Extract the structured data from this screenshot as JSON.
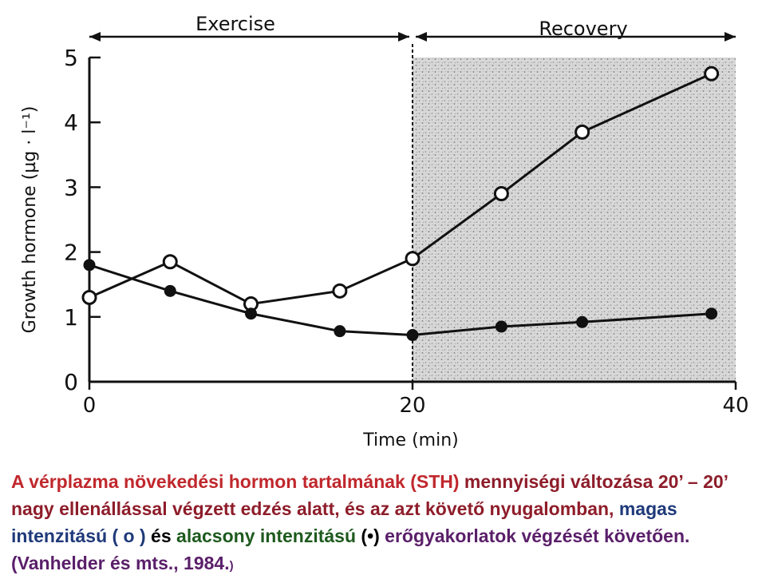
{
  "chart_data": {
    "type": "line",
    "xlabel": "Time (min)",
    "ylabel": "Growth hormone (µg · l⁻¹)",
    "xlim": [
      0,
      40
    ],
    "ylim": [
      0,
      5
    ],
    "x_ticks": [
      "0",
      "20",
      "40"
    ],
    "y_ticks": [
      "0",
      "1",
      "2",
      "3",
      "4",
      "5"
    ],
    "phases": [
      {
        "label": "Exercise",
        "x_range": [
          0,
          20
        ]
      },
      {
        "label": "Recovery",
        "x_range": [
          20,
          40
        ]
      }
    ],
    "shaded_region": [
      20,
      40
    ],
    "series": [
      {
        "marker": "open-circle",
        "x": [
          0,
          5,
          10,
          15.5,
          20,
          25.5,
          30.5,
          38.5
        ],
        "values": [
          1.3,
          1.85,
          1.2,
          1.4,
          1.9,
          2.9,
          3.85,
          4.75
        ]
      },
      {
        "marker": "filled-circle",
        "x": [
          0,
          5,
          10,
          15.5,
          20,
          25.5,
          30.5,
          38.5
        ],
        "values": [
          1.8,
          1.4,
          1.05,
          0.78,
          0.72,
          0.85,
          0.92,
          1.05
        ]
      }
    ]
  },
  "caption": {
    "part1": "A vérplazma növekedési hormon tartalmának (STH)",
    "part2": " mennyiségi változása 20’ – 20’ nagy ellenállással végzett edzés alatt, és az azt követő nyugalomban, ",
    "part3": "magas intenzitású ( o )",
    "part4": " és ",
    "part5": "alacsony intenzitású",
    "part6": " (•) ",
    "part7": "erőgyakorlatok végzését követően.",
    "part8": "   (Vanhelder és mts., 1984.",
    "part9": ")"
  }
}
